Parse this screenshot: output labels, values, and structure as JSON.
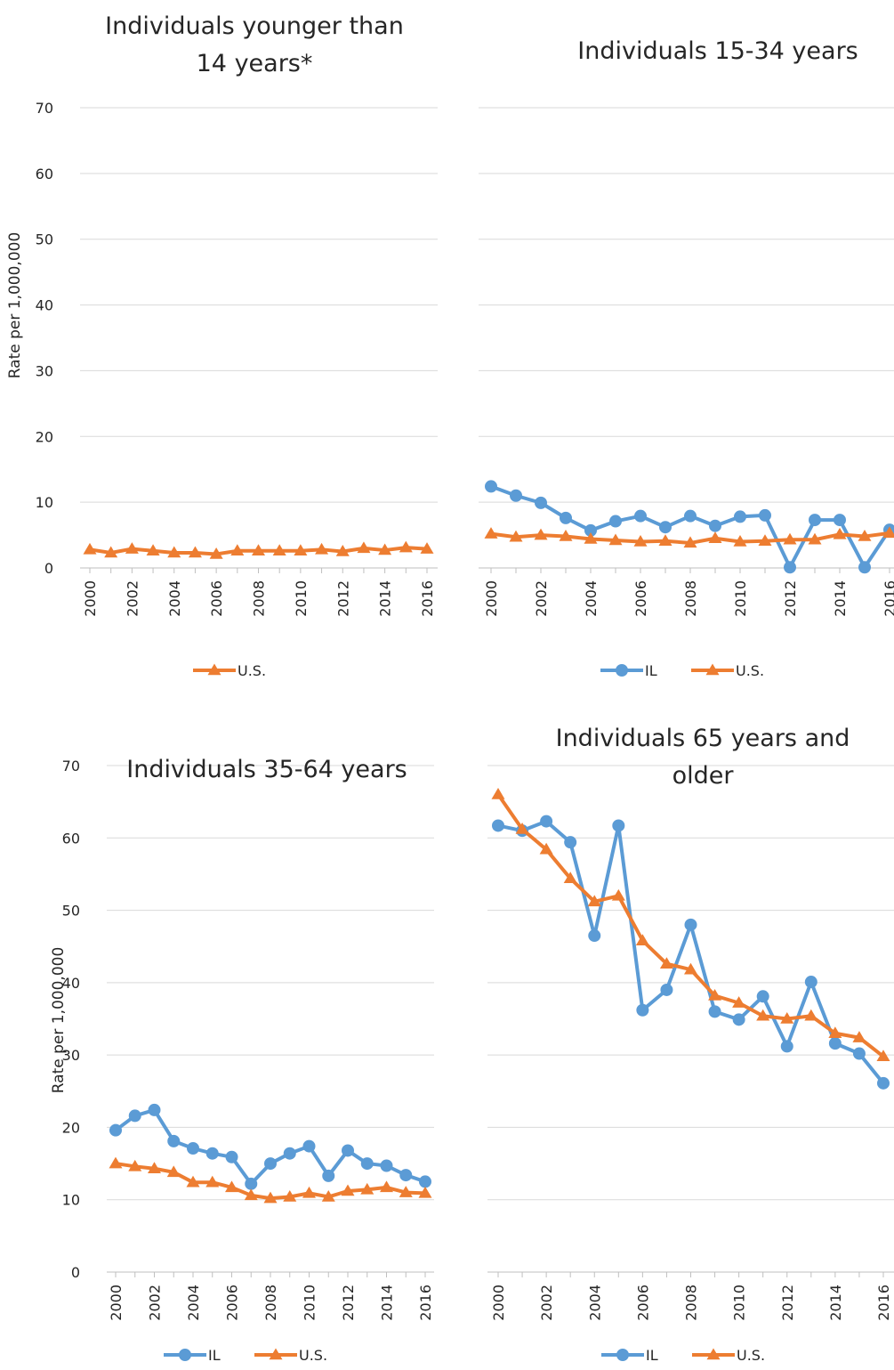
{
  "colors": {
    "IL": "#5b9bd5",
    "U.S.": "#ed7d31"
  },
  "chart_data": [
    {
      "type": "line",
      "title": "Individuals younger than 14 years*",
      "title_lines": [
        "Individuals younger than",
        "14 years*"
      ],
      "ylabel": "Rate per 1,000,000",
      "ylim": [
        0,
        70
      ],
      "yticks": [
        "0",
        "10",
        "20",
        "30",
        "40",
        "50",
        "60",
        "70"
      ],
      "x": [
        "2000",
        "2001",
        "2002",
        "2003",
        "2004",
        "2005",
        "2006",
        "2007",
        "2008",
        "2009",
        "2010",
        "2011",
        "2012",
        "2013",
        "2014",
        "2015",
        "2016"
      ],
      "xtick_labels": [
        "2000",
        "2002",
        "2004",
        "2006",
        "2008",
        "2010",
        "2012",
        "2014",
        "2016"
      ],
      "legend": [
        "U.S."
      ],
      "series": [
        {
          "name": "U.S.",
          "marker": "triangle",
          "values": [
            2.8,
            2.3,
            2.9,
            2.6,
            2.3,
            2.3,
            2.1,
            2.6,
            2.6,
            2.6,
            2.6,
            2.8,
            2.5,
            3.0,
            2.7,
            3.1,
            2.9
          ]
        }
      ]
    },
    {
      "type": "line",
      "title": "Individuals 15-34 years",
      "title_lines": [
        "Individuals 15-34 years"
      ],
      "ylim": [
        0,
        70
      ],
      "x": [
        "2000",
        "2001",
        "2002",
        "2003",
        "2004",
        "2005",
        "2006",
        "2007",
        "2008",
        "2009",
        "2010",
        "2011",
        "2012",
        "2013",
        "2014",
        "2015",
        "2016"
      ],
      "xtick_labels": [
        "2000",
        "2002",
        "2004",
        "2006",
        "2008",
        "2010",
        "2012",
        "2014",
        "2016"
      ],
      "legend": [
        "IL",
        "U.S."
      ],
      "series": [
        {
          "name": "IL",
          "marker": "circle",
          "values": [
            12.4,
            11.0,
            9.9,
            7.6,
            5.7,
            7.1,
            7.9,
            6.2,
            7.9,
            6.4,
            7.8,
            8.0,
            0.1,
            7.3,
            7.3,
            0.1,
            5.8
          ]
        },
        {
          "name": "U.S.",
          "marker": "triangle",
          "values": [
            5.2,
            4.7,
            5.0,
            4.8,
            4.4,
            4.2,
            4.0,
            4.1,
            3.8,
            4.5,
            4.0,
            4.1,
            4.3,
            4.3,
            5.1,
            4.8,
            5.3
          ]
        }
      ]
    },
    {
      "type": "line",
      "title": "Individuals 35-64 years",
      "title_lines": [
        "Individuals 35-64 years"
      ],
      "ylabel": "Rate per 1,000,000",
      "ylim": [
        0,
        70
      ],
      "yticks": [
        "0",
        "10",
        "20",
        "30",
        "40",
        "50",
        "60",
        "70"
      ],
      "x": [
        "2000",
        "2001",
        "2002",
        "2003",
        "2004",
        "2005",
        "2006",
        "2007",
        "2008",
        "2009",
        "2010",
        "2011",
        "2012",
        "2013",
        "2014",
        "2015",
        "2016"
      ],
      "xtick_labels": [
        "2000",
        "2002",
        "2004",
        "2006",
        "2008",
        "2010",
        "2012",
        "2014",
        "2016"
      ],
      "legend": [
        "IL",
        "U.S."
      ],
      "series": [
        {
          "name": "IL",
          "marker": "circle",
          "values": [
            19.6,
            21.6,
            22.4,
            18.1,
            17.1,
            16.4,
            15.9,
            12.2,
            15.0,
            16.4,
            17.4,
            13.3,
            16.8,
            15.0,
            14.7,
            13.4,
            12.5
          ]
        },
        {
          "name": "U.S.",
          "marker": "triangle",
          "values": [
            15.0,
            14.6,
            14.3,
            13.8,
            12.4,
            12.4,
            11.7,
            10.6,
            10.2,
            10.4,
            10.9,
            10.4,
            11.2,
            11.4,
            11.7,
            11.0,
            10.9
          ]
        }
      ]
    },
    {
      "type": "line",
      "title": "Individuals 65 years and older",
      "title_lines": [
        "Individuals 65 years and",
        "older"
      ],
      "ylim": [
        0,
        70
      ],
      "x": [
        "2000",
        "2001",
        "2002",
        "2003",
        "2004",
        "2005",
        "2006",
        "2007",
        "2008",
        "2009",
        "2010",
        "2011",
        "2012",
        "2013",
        "2014",
        "2015",
        "2016"
      ],
      "xtick_labels": [
        "2000",
        "2002",
        "2004",
        "2006",
        "2008",
        "2010",
        "2012",
        "2014",
        "2016"
      ],
      "legend": [
        "IL",
        "U.S."
      ],
      "series": [
        {
          "name": "IL",
          "marker": "circle",
          "values": [
            61.7,
            61.0,
            62.3,
            59.4,
            46.5,
            61.7,
            36.2,
            39.0,
            48.0,
            36.0,
            34.9,
            38.1,
            31.2,
            40.1,
            31.6,
            30.2,
            26.1
          ]
        },
        {
          "name": "U.S.",
          "marker": "triangle",
          "values": [
            66.0,
            61.2,
            58.4,
            54.4,
            51.2,
            52.0,
            45.8,
            42.6,
            41.8,
            38.2,
            37.2,
            35.4,
            35.0,
            35.4,
            33.0,
            32.4,
            29.8
          ]
        }
      ]
    }
  ]
}
